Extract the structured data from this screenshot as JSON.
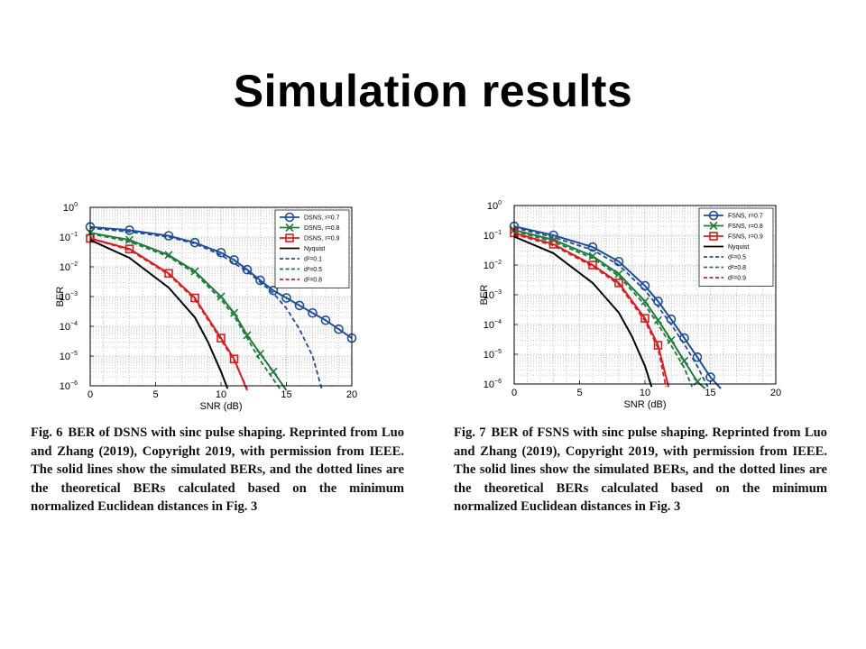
{
  "slide": {
    "title": "Simulation results"
  },
  "captions": [
    {
      "prefix": "Fig. 6",
      "text": "BER of DSNS with sinc pulse shaping. Reprinted from Luo and Zhang (2019), Copyright 2019, with permission from IEEE. The solid lines show the simulated BERs, and the dotted lines are the theoretical BERs calculated based on the minimum normalized Euclidean distances in Fig. 3"
    },
    {
      "prefix": "Fig. 7",
      "text": "BER of FSNS with sinc pulse shaping. Reprinted from Luo and Zhang (2019), Copyright 2019, with permission from IEEE. The solid lines show the simulated BERs, and the dotted lines are the theoretical BERs calculated based on the minimum normalized Euclidean distances in Fig. 3"
    }
  ],
  "chart_data": [
    {
      "type": "line",
      "title": "",
      "xlabel": "SNR (dB)",
      "ylabel": "BER",
      "xlim": [
        0,
        20
      ],
      "ylim": [
        1e-06,
        1
      ],
      "yscale": "log",
      "xticks": [
        "0",
        "5",
        "10",
        "15",
        "20"
      ],
      "yticks": [
        "10^0",
        "10^-1",
        "10^-2",
        "10^-3",
        "10^-4",
        "10^-5",
        "10^-6"
      ],
      "grid": true,
      "legend_position": "top-right",
      "series": [
        {
          "name": "DSNS, r=0.7",
          "color": "#1f4e99",
          "style": "solid",
          "marker": "circle",
          "x": [
            0,
            3,
            6,
            8,
            10,
            11,
            12,
            13,
            14,
            15,
            16,
            17,
            18,
            19,
            20
          ],
          "y": [
            0.22,
            0.17,
            0.11,
            0.065,
            0.03,
            0.017,
            0.008,
            0.0035,
            0.0016,
            0.0009,
            0.0005,
            0.00028,
            0.00016,
            8e-05,
            4e-05
          ]
        },
        {
          "name": "DSNS, r=0.8",
          "color": "#1f7a3a",
          "style": "solid",
          "marker": "x",
          "x": [
            0,
            3,
            6,
            8,
            10,
            11,
            12,
            13,
            14,
            15
          ],
          "y": [
            0.14,
            0.08,
            0.025,
            0.007,
            0.001,
            0.00028,
            5e-05,
            1.2e-05,
            3e-06,
            7e-07
          ]
        },
        {
          "name": "DSNS, r=0.9",
          "color": "#d42020",
          "style": "solid",
          "marker": "square",
          "x": [
            0,
            3,
            6,
            8,
            10,
            11,
            12
          ],
          "y": [
            0.09,
            0.04,
            0.006,
            0.0009,
            4e-05,
            8e-06,
            7e-07
          ]
        },
        {
          "name": "Nyquist",
          "color": "#000000",
          "style": "solid",
          "marker": "none",
          "x": [
            0,
            3,
            6,
            8,
            9,
            10,
            10.5
          ],
          "y": [
            0.08,
            0.02,
            0.002,
            0.0002,
            3e-05,
            3e-06,
            8e-07
          ]
        },
        {
          "name": "d²=0.1",
          "color": "#1f4e99",
          "style": "dashed",
          "marker": "none",
          "x": [
            0,
            3,
            6,
            8,
            10,
            12,
            14,
            15,
            16,
            17,
            17.7
          ],
          "y": [
            0.2,
            0.15,
            0.1,
            0.06,
            0.025,
            0.007,
            0.0013,
            0.0004,
            8e-05,
            1e-05,
            8e-07
          ]
        },
        {
          "name": "d²=0.5",
          "color": "#1f7a3a",
          "style": "dashed",
          "marker": "none",
          "x": [
            0,
            3,
            6,
            8,
            10,
            11,
            12,
            13,
            14.5
          ],
          "y": [
            0.13,
            0.07,
            0.022,
            0.006,
            0.0008,
            0.00022,
            4e-05,
            7e-06,
            8e-07
          ]
        },
        {
          "name": "d²=0.8",
          "color": "#d42020",
          "style": "dashed",
          "marker": "none",
          "x": [
            0,
            3,
            6,
            8,
            10,
            11,
            12
          ],
          "y": [
            0.09,
            0.037,
            0.0055,
            0.0008,
            3.5e-05,
            7e-06,
            8e-07
          ]
        }
      ]
    },
    {
      "type": "line",
      "title": "",
      "xlabel": "SNR (dB)",
      "ylabel": "BER",
      "xlim": [
        0,
        20
      ],
      "ylim": [
        1e-06,
        1
      ],
      "yscale": "log",
      "xticks": [
        "0",
        "5",
        "10",
        "15",
        "20"
      ],
      "yticks": [
        "10^0",
        "10^-1",
        "10^-2",
        "10^-3",
        "10^-4",
        "10^-5",
        "10^-6"
      ],
      "grid": true,
      "legend_position": "top-right",
      "series": [
        {
          "name": "FSNS, r=0.7",
          "color": "#1f4e99",
          "style": "solid",
          "marker": "circle",
          "x": [
            0,
            3,
            6,
            8,
            10,
            11,
            12,
            13,
            14,
            15,
            15.8
          ],
          "y": [
            0.2,
            0.1,
            0.04,
            0.013,
            0.002,
            0.0006,
            0.00015,
            3.5e-05,
            8e-06,
            1.7e-06,
            7e-07
          ]
        },
        {
          "name": "FSNS, r=0.8",
          "color": "#1f7a3a",
          "style": "solid",
          "marker": "x",
          "x": [
            0,
            3,
            6,
            8,
            10,
            11,
            12,
            13,
            14,
            14.6
          ],
          "y": [
            0.15,
            0.07,
            0.02,
            0.005,
            0.0006,
            0.00014,
            3e-05,
            6e-06,
            1.2e-06,
            7e-07
          ]
        },
        {
          "name": "FSNS, r=0.9",
          "color": "#d42020",
          "style": "solid",
          "marker": "square",
          "x": [
            0,
            3,
            6,
            8,
            10,
            11,
            11.8
          ],
          "y": [
            0.12,
            0.05,
            0.01,
            0.0025,
            0.00016,
            2e-05,
            8e-07
          ]
        },
        {
          "name": "Nyquist",
          "color": "#000000",
          "style": "solid",
          "marker": "none",
          "x": [
            0,
            3,
            6,
            8,
            9,
            10,
            10.5
          ],
          "y": [
            0.09,
            0.025,
            0.0025,
            0.00025,
            4e-05,
            4e-06,
            8e-07
          ]
        },
        {
          "name": "d²=0.5",
          "color": "#1f4e99",
          "style": "dashed",
          "marker": "none",
          "x": [
            0,
            3,
            6,
            8,
            10,
            11,
            12,
            13,
            14,
            14.8
          ],
          "y": [
            0.18,
            0.085,
            0.032,
            0.01,
            0.0014,
            0.0004,
            0.0001,
            2.2e-05,
            4e-06,
            8e-07
          ]
        },
        {
          "name": "d²=0.8",
          "color": "#1f7a3a",
          "style": "dashed",
          "marker": "none",
          "x": [
            0,
            3,
            6,
            8,
            10,
            11,
            12,
            13,
            13.6
          ],
          "y": [
            0.14,
            0.06,
            0.017,
            0.0042,
            0.00045,
            0.0001,
            2e-05,
            3.5e-06,
            8e-07
          ]
        },
        {
          "name": "d²=0.9",
          "color": "#d42020",
          "style": "dashed",
          "marker": "none",
          "x": [
            0,
            3,
            6,
            8,
            10,
            11,
            11.6
          ],
          "y": [
            0.11,
            0.045,
            0.009,
            0.0022,
            0.00013,
            1.6e-05,
            8e-07
          ]
        }
      ]
    }
  ]
}
